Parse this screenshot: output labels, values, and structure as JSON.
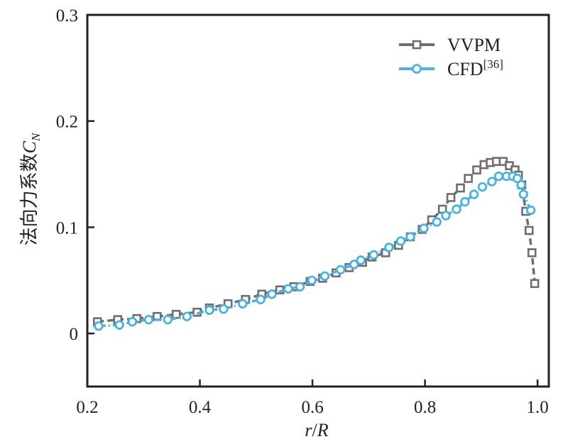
{
  "chart_data": {
    "type": "line",
    "title": "",
    "xlabel": "r/R",
    "xlabel_parts": {
      "num": "r",
      "sep": "/",
      "den": "R"
    },
    "ylabel": "法向力系数C_N",
    "ylabel_parts": {
      "text": "法向力系数",
      "symbol": "C",
      "subscript": "N"
    },
    "xlim": [
      0.2,
      1.02
    ],
    "ylim": [
      -0.05,
      0.3
    ],
    "xticks": [
      0.2,
      0.4,
      0.6,
      0.8,
      1.0
    ],
    "xtick_labels": [
      "0.2",
      "0.4",
      "0.6",
      "0.8",
      "1.0"
    ],
    "yticks": [
      0,
      0.1,
      0.2,
      0.3
    ],
    "ytick_labels": [
      "0",
      "0.1",
      "0.2",
      "0.3"
    ],
    "grid": false,
    "legend_position": "top-right",
    "series": [
      {
        "name": "VVPM",
        "legend_label": "VVPM",
        "marker": "square",
        "color": "#6e6e6e",
        "line_style": "dashed",
        "x": [
          0.218,
          0.254,
          0.288,
          0.324,
          0.358,
          0.395,
          0.417,
          0.45,
          0.481,
          0.51,
          0.542,
          0.567,
          0.596,
          0.618,
          0.642,
          0.665,
          0.689,
          0.706,
          0.73,
          0.753,
          0.774,
          0.795,
          0.812,
          0.831,
          0.846,
          0.863,
          0.877,
          0.892,
          0.905,
          0.916,
          0.927,
          0.939,
          0.95,
          0.96,
          0.966,
          0.972,
          0.979,
          0.985,
          0.99,
          0.995
        ],
        "y": [
          0.011,
          0.013,
          0.014,
          0.016,
          0.018,
          0.02,
          0.024,
          0.028,
          0.032,
          0.037,
          0.041,
          0.044,
          0.049,
          0.052,
          0.057,
          0.062,
          0.067,
          0.072,
          0.076,
          0.083,
          0.091,
          0.098,
          0.107,
          0.117,
          0.128,
          0.137,
          0.146,
          0.154,
          0.159,
          0.161,
          0.162,
          0.162,
          0.158,
          0.154,
          0.149,
          0.14,
          0.115,
          0.097,
          0.076,
          0.047
        ]
      },
      {
        "name": "CFD[36]",
        "legend_label": "CFD",
        "legend_superscript": "[36]",
        "marker": "circle",
        "color": "#4db1dd",
        "line_style": "dash-dot",
        "x": [
          0.22,
          0.257,
          0.28,
          0.309,
          0.343,
          0.377,
          0.417,
          0.442,
          0.476,
          0.508,
          0.528,
          0.557,
          0.578,
          0.599,
          0.622,
          0.65,
          0.674,
          0.686,
          0.709,
          0.736,
          0.757,
          0.774,
          0.798,
          0.821,
          0.837,
          0.856,
          0.871,
          0.887,
          0.902,
          0.919,
          0.931,
          0.945,
          0.956,
          0.964,
          0.971,
          0.975,
          0.988
        ],
        "y": [
          0.007,
          0.008,
          0.011,
          0.013,
          0.013,
          0.016,
          0.022,
          0.023,
          0.028,
          0.032,
          0.037,
          0.042,
          0.044,
          0.05,
          0.054,
          0.06,
          0.065,
          0.069,
          0.074,
          0.081,
          0.087,
          0.091,
          0.099,
          0.105,
          0.111,
          0.117,
          0.124,
          0.131,
          0.138,
          0.143,
          0.148,
          0.148,
          0.148,
          0.146,
          0.14,
          0.131,
          0.116
        ]
      }
    ]
  }
}
